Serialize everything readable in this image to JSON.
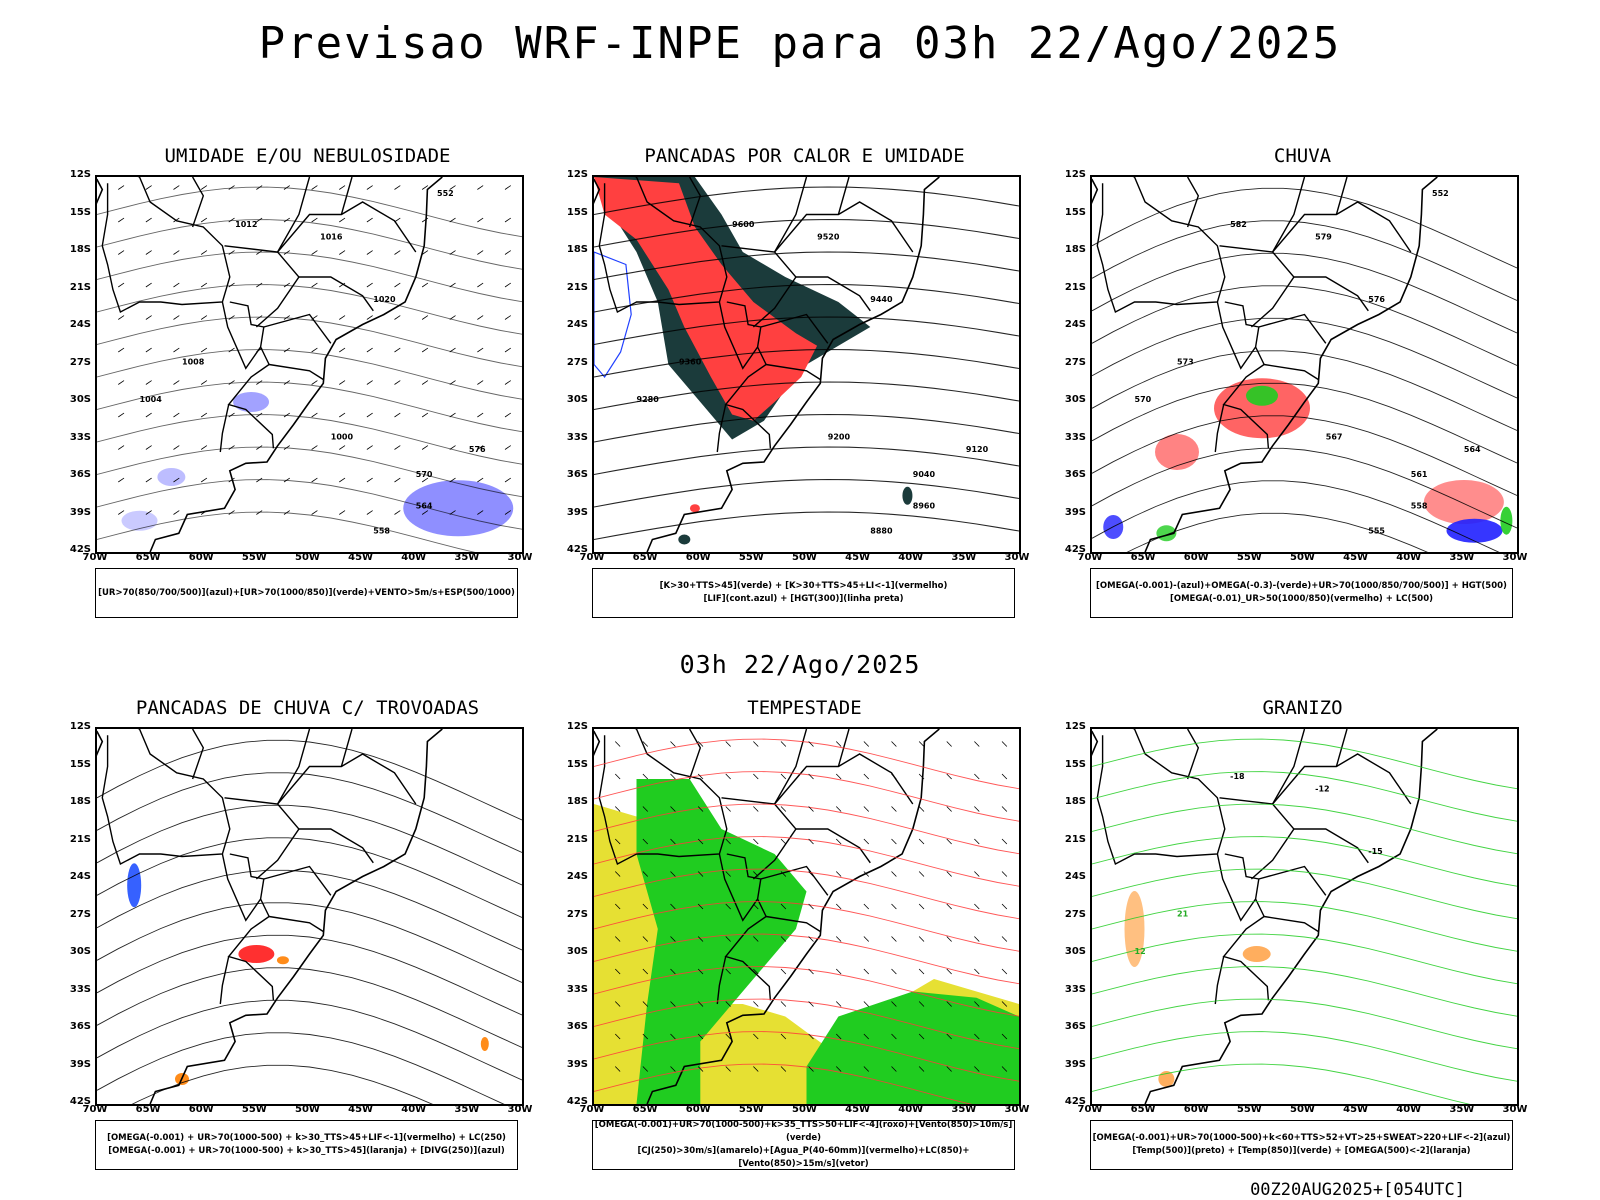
{
  "title": "Previsao WRF-INPE  para 03h 22/Ago/2025",
  "mid_title": "03h 22/Ago/2025",
  "footer": "00Z20AUG2025+[054UTC]",
  "axes": {
    "lat_labels": [
      "12S",
      "15S",
      "18S",
      "21S",
      "24S",
      "27S",
      "30S",
      "33S",
      "36S",
      "39S",
      "42S"
    ],
    "lon_labels": [
      "70W",
      "65W",
      "60W",
      "55W",
      "50W",
      "45W",
      "40W",
      "35W",
      "30W"
    ]
  },
  "panels": [
    {
      "title": "UMIDADE E/OU NEBULOSIDADE",
      "legend": [
        "[UR>70(850/700/500)](azul)+[UR>70(1000/850)](verde)+VENTO>5m/s+ESP(500/1000)"
      ],
      "contour_labels": [
        "1012",
        "1016",
        "1020",
        "1008",
        "1004",
        "1000",
        "576",
        "570",
        "564",
        "558",
        "552"
      ],
      "fill_colors": [
        "#7b7bff",
        "#22cc22",
        "#ff3333"
      ]
    },
    {
      "title": "PANCADAS POR CALOR E UMIDADE",
      "legend": [
        "[K>30+TTS>45](verde) + [K>30+TTS>45+LI<-1](vermelho)",
        "[LIF](cont.azul) + [HGT(300)](linha preta)"
      ],
      "contour_labels": [
        "9600",
        "9520",
        "9440",
        "9360",
        "9280",
        "9200",
        "9120",
        "9040",
        "8960",
        "8880"
      ],
      "fill_colors": [
        "#ff4040",
        "#1b3b3b",
        "#2040ff"
      ]
    },
    {
      "title": "CHUVA",
      "legend": [
        "[OMEGA(-0.001)-(azul)+OMEGA(-0.3)-(verde)+UR>70(1000/850/700/500)] + HGT(500)",
        "[OMEGA(-0.01)_UR>50(1000/850)(vermelho) + LC(500)"
      ],
      "contour_labels": [
        "582",
        "579",
        "576",
        "573",
        "570",
        "567",
        "564",
        "561",
        "558",
        "555",
        "552"
      ],
      "fill_colors": [
        "#ff3030",
        "#2020ff",
        "#20cc20"
      ]
    },
    {
      "title": "PANCADAS DE CHUVA C/ TROVOADAS",
      "legend": [
        "[OMEGA(-0.001) + UR>70(1000-500) + k>30_TTS>45+LIF<-1](vermelho) + LC(250)",
        "[OMEGA(-0.001) + UR>70(1000-500) + k>30_TTS>45](laranja) + [DIVG(250)](azul)"
      ],
      "contour_labels": [],
      "fill_colors": [
        "#ff3030",
        "#ff8c1a",
        "#2050ff"
      ]
    },
    {
      "title": "TEMPESTADE",
      "legend": [
        "[OMEGA(-0.001)+UR>70(1000-500)+k>35_TTS>50+LIF<-4](roxo)+[Vento(850)>10m/s](verde)",
        "[CJ(250)>30m/s](amarelo)+[Agua_P(40-60mm)](vermelho)+LC(850)+[Vento(850)>15m/s](vetor)"
      ],
      "contour_labels": [],
      "fill_colors": [
        "#e6e033",
        "#20cc20",
        "#ff3030"
      ]
    },
    {
      "title": "GRANIZO",
      "legend": [
        "[OMEGA(-0.001)+UR>70(1000-500)+k<60+TTS>52+VT>25+SWEAT>220+LIF<-2](azul)",
        "[Temp(500)](preto) + [Temp(850)](verde) + [OMEGA(500)<-2](laranja)"
      ],
      "contour_labels": [
        "-18",
        "-12",
        "-15",
        "21",
        "12"
      ],
      "fill_colors": [
        "#20cc20",
        "#ff8c1a",
        "#2050ff"
      ]
    }
  ]
}
